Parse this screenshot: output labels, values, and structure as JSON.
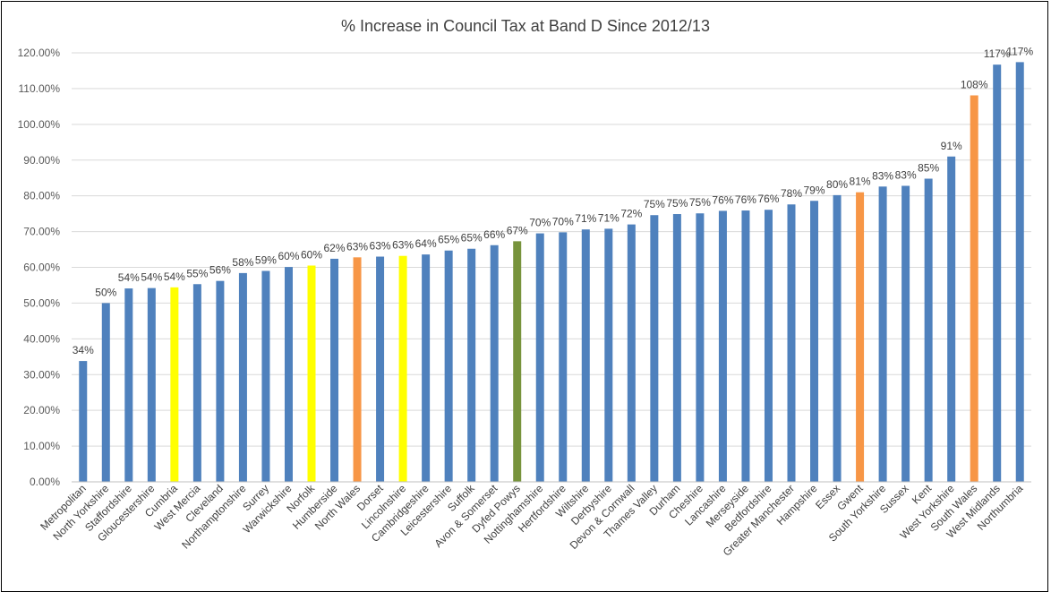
{
  "chart_data": {
    "type": "bar",
    "title": "% Increase in Council Tax at Band D Since 2012/13",
    "xlabel": "",
    "ylabel": "",
    "ylim": [
      0,
      120
    ],
    "ytick_step": 10,
    "ytick_labels": [
      "0.00%",
      "10.00%",
      "20.00%",
      "30.00%",
      "40.00%",
      "50.00%",
      "60.00%",
      "70.00%",
      "80.00%",
      "90.00%",
      "100.00%",
      "110.00%",
      "120.00%"
    ],
    "grid": true,
    "legend": "none",
    "categories": [
      "Metropolitan",
      "North Yorkshire",
      "Staffordshire",
      "Gloucestershire",
      "Cumbria",
      "West Mercia",
      "Cleveland",
      "Northamptonshire",
      "Surrey",
      "Warwickshire",
      "Norfolk",
      "Humberside",
      "North Wales",
      "Dorset",
      "Lincolnshire",
      "Cambridgeshire",
      "Leicestershire",
      "Suffolk",
      "Avon & Somerset",
      "Dyfed Powys",
      "Nottinghamshire",
      "Hertfordshire",
      "Wiltshire",
      "Derbyshire",
      "Devon & Cornwall",
      "Thames Valley",
      "Durham",
      "Cheshire",
      "Lancashire",
      "Merseyside",
      "Bedfordshire",
      "Greater Manchester",
      "Hampshire",
      "Essex",
      "Gwent",
      "South Yorkshire",
      "Sussex",
      "Kent",
      "West Yorkshire",
      "South Wales",
      "West Midlands",
      "Northumbria"
    ],
    "values": [
      33.8,
      50.0,
      54.1,
      54.2,
      54.4,
      55.3,
      56.2,
      58.4,
      59.0,
      60.1,
      60.5,
      62.4,
      62.8,
      63.0,
      63.2,
      63.6,
      64.7,
      65.2,
      66.2,
      67.3,
      69.5,
      69.8,
      70.6,
      70.8,
      72.0,
      74.6,
      74.9,
      75.1,
      75.8,
      75.9,
      76.1,
      77.6,
      78.6,
      80.2,
      81.0,
      82.6,
      82.8,
      84.8,
      91.0,
      108.1,
      116.7,
      117.4
    ],
    "data_labels": [
      "34%",
      "50%",
      "54%",
      "54%",
      "54%",
      "55%",
      "56%",
      "58%",
      "59%",
      "60%",
      "60%",
      "62%",
      "63%",
      "63%",
      "63%",
      "64%",
      "65%",
      "65%",
      "66%",
      "67%",
      "70%",
      "70%",
      "71%",
      "71%",
      "72%",
      "75%",
      "75%",
      "75%",
      "76%",
      "76%",
      "76%",
      "78%",
      "79%",
      "80%",
      "81%",
      "83%",
      "83%",
      "85%",
      "91%",
      "108%",
      "117%",
      "117%"
    ],
    "colors": {
      "default": "#4f81bd",
      "yellow": "#ffff00",
      "orange": "#f79646",
      "green": "#77933c",
      "grid": "#d9d9d9",
      "axis": "#bfbfbf"
    },
    "bar_colors": [
      "default",
      "default",
      "default",
      "default",
      "yellow",
      "default",
      "default",
      "default",
      "default",
      "default",
      "yellow",
      "default",
      "orange",
      "default",
      "yellow",
      "default",
      "default",
      "default",
      "default",
      "green",
      "default",
      "default",
      "default",
      "default",
      "default",
      "default",
      "default",
      "default",
      "default",
      "default",
      "default",
      "default",
      "default",
      "default",
      "orange",
      "default",
      "default",
      "default",
      "default",
      "orange",
      "default",
      "default"
    ]
  }
}
